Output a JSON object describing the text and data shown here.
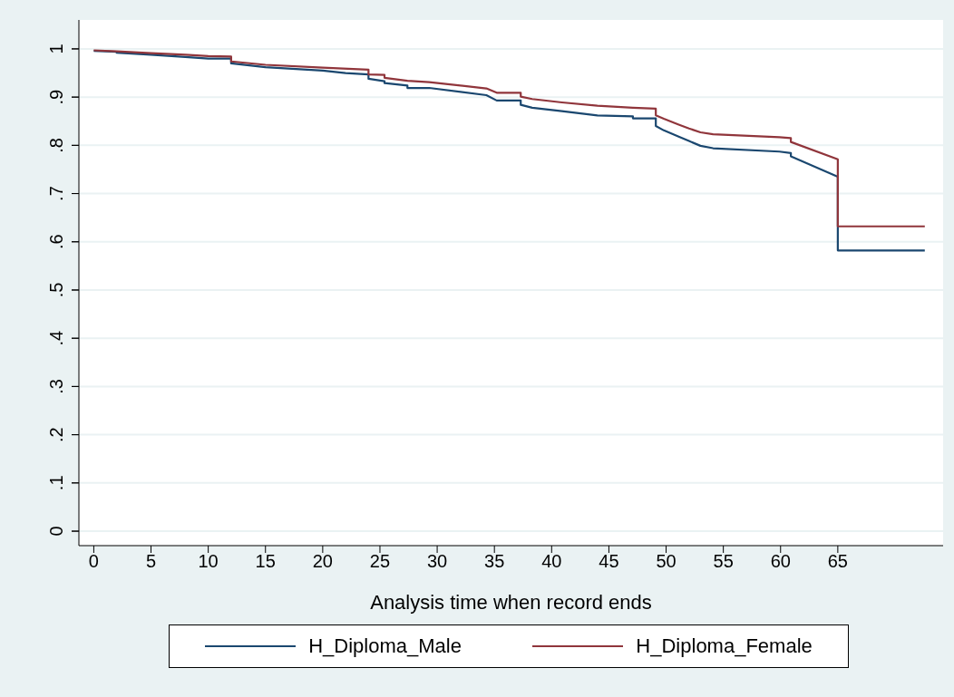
{
  "chart_data": {
    "type": "line",
    "xlabel": "Analysis time when record ends",
    "xlim": [
      -1.3,
      74.2
    ],
    "ylim": [
      -0.03,
      1.06
    ],
    "xticks": [
      0,
      5,
      10,
      15,
      20,
      25,
      30,
      35,
      40,
      45,
      50,
      55,
      60,
      65
    ],
    "yticks": [
      {
        "value": 0,
        "label": "0"
      },
      {
        "value": 0.1,
        "label": ".1"
      },
      {
        "value": 0.2,
        "label": ".2"
      },
      {
        "value": 0.3,
        "label": ".3"
      },
      {
        "value": 0.4,
        "label": ".4"
      },
      {
        "value": 0.5,
        "label": ".5"
      },
      {
        "value": 0.6,
        "label": ".6"
      },
      {
        "value": 0.7,
        "label": ".7"
      },
      {
        "value": 0.8,
        "label": ".8"
      },
      {
        "value": 0.9,
        "label": ".9"
      },
      {
        "value": 1,
        "label": "1"
      }
    ],
    "grid": "y",
    "legend": "bottom",
    "series": [
      {
        "name": "H_Diploma_Male",
        "color": "#1a476f",
        "x": [
          0,
          2,
          2,
          5,
          8,
          10,
          12,
          12,
          15,
          20,
          22,
          24,
          24,
          25.4,
          25.4,
          27.4,
          27.4,
          29.3,
          34.3,
          35.2,
          37.3,
          37.3,
          38.3,
          40.9,
          44,
          47.1,
          47.1,
          49.1,
          49.1,
          49.8,
          51.1,
          52,
          53,
          54.1,
          59.9,
          60.9,
          60.9,
          65,
          65,
          72.6
        ],
        "values": [
          0.996,
          0.994,
          0.992,
          0.988,
          0.983,
          0.98,
          0.98,
          0.97,
          0.962,
          0.955,
          0.95,
          0.947,
          0.938,
          0.933,
          0.929,
          0.924,
          0.919,
          0.919,
          0.904,
          0.893,
          0.893,
          0.884,
          0.878,
          0.871,
          0.862,
          0.86,
          0.856,
          0.856,
          0.84,
          0.831,
          0.818,
          0.809,
          0.799,
          0.794,
          0.787,
          0.784,
          0.777,
          0.735,
          0.582,
          0.582
        ]
      },
      {
        "name": "H_Diploma_Female",
        "color": "#90353b",
        "x": [
          0,
          2,
          5,
          8,
          10,
          12,
          12,
          15,
          20,
          24,
          24,
          25.4,
          25.4,
          27.4,
          29.3,
          34.3,
          35.2,
          37.3,
          37.3,
          38.3,
          40.9,
          44,
          47.1,
          47.1,
          49.1,
          49.1,
          49.8,
          51.1,
          52,
          53,
          54.1,
          59.9,
          60.9,
          60.9,
          65,
          65,
          72.6
        ],
        "values": [
          0.997,
          0.995,
          0.991,
          0.988,
          0.985,
          0.984,
          0.974,
          0.967,
          0.961,
          0.957,
          0.947,
          0.946,
          0.94,
          0.934,
          0.931,
          0.918,
          0.909,
          0.909,
          0.901,
          0.896,
          0.889,
          0.882,
          0.878,
          0.878,
          0.876,
          0.862,
          0.855,
          0.843,
          0.835,
          0.827,
          0.823,
          0.817,
          0.815,
          0.807,
          0.771,
          0.632,
          0.632
        ]
      }
    ]
  }
}
